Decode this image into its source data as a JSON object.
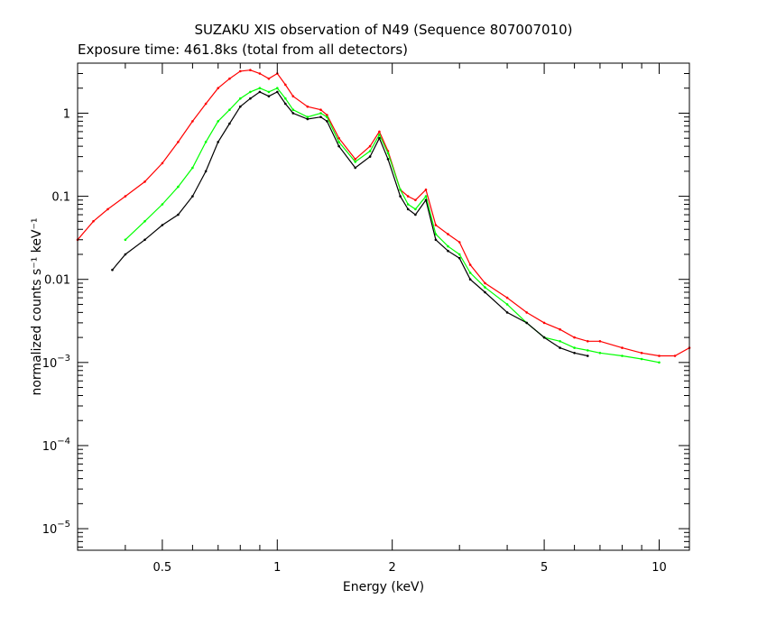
{
  "chart_data": {
    "type": "line",
    "title": "SUZAKU XIS observation of N49 (Sequence 807007010)",
    "subtitle": "Exposure time: 461.8ks (total from all detectors)",
    "xlabel": "Energy (keV)",
    "ylabel": "normalized counts s⁻¹ keV⁻¹",
    "x_scale": "log",
    "y_scale": "log",
    "xlim": [
      0.3,
      12
    ],
    "ylim": [
      5.5e-06,
      4
    ],
    "grid": false,
    "legend": "none",
    "x_ticks": [
      {
        "value": 0.5,
        "label": "0.5"
      },
      {
        "value": 1,
        "label": "1"
      },
      {
        "value": 2,
        "label": "2"
      },
      {
        "value": 5,
        "label": "5"
      },
      {
        "value": 10,
        "label": "10"
      }
    ],
    "y_ticks": [
      {
        "value": 1,
        "label": "1"
      },
      {
        "value": 0.1,
        "label": "0.1"
      },
      {
        "value": 0.01,
        "label": "0.01"
      },
      {
        "value": 0.001,
        "base": "10",
        "exp": "−3"
      },
      {
        "value": 0.0001,
        "base": "10",
        "exp": "−4"
      },
      {
        "value": 1e-05,
        "base": "10",
        "exp": "−5"
      }
    ],
    "series": [
      {
        "color": "#ff0000",
        "x": [
          0.3,
          0.33,
          0.36,
          0.4,
          0.45,
          0.5,
          0.55,
          0.6,
          0.65,
          0.7,
          0.75,
          0.8,
          0.85,
          0.9,
          0.95,
          1.0,
          1.05,
          1.1,
          1.2,
          1.3,
          1.35,
          1.45,
          1.6,
          1.75,
          1.85,
          1.95,
          2.1,
          2.2,
          2.3,
          2.45,
          2.6,
          2.8,
          3.0,
          3.2,
          3.5,
          4.0,
          4.5,
          5.0,
          5.5,
          6.0,
          6.5,
          7.0,
          8.0,
          9.0,
          10.0,
          11.0,
          12.0
        ],
        "y": [
          0.03,
          0.05,
          0.07,
          0.1,
          0.15,
          0.25,
          0.45,
          0.8,
          1.3,
          2.0,
          2.6,
          3.2,
          3.3,
          3.0,
          2.6,
          3.0,
          2.2,
          1.6,
          1.2,
          1.1,
          0.95,
          0.5,
          0.28,
          0.4,
          0.6,
          0.35,
          0.12,
          0.1,
          0.09,
          0.12,
          0.045,
          0.035,
          0.028,
          0.015,
          0.009,
          0.006,
          0.004,
          0.003,
          0.0025,
          0.002,
          0.0018,
          0.0018,
          0.0015,
          0.0013,
          0.0012,
          0.0012,
          0.0015
        ]
      },
      {
        "color": "#00ff00",
        "x": [
          0.4,
          0.45,
          0.5,
          0.55,
          0.6,
          0.65,
          0.7,
          0.75,
          0.8,
          0.85,
          0.9,
          0.95,
          1.0,
          1.05,
          1.1,
          1.2,
          1.3,
          1.35,
          1.45,
          1.6,
          1.75,
          1.85,
          1.95,
          2.1,
          2.2,
          2.3,
          2.45,
          2.6,
          2.8,
          3.0,
          3.2,
          3.5,
          4.0,
          4.5,
          5.0,
          5.5,
          6.0,
          6.5,
          7.0,
          8.0,
          9.0,
          10.0
        ],
        "y": [
          0.03,
          0.05,
          0.08,
          0.13,
          0.22,
          0.45,
          0.8,
          1.1,
          1.5,
          1.8,
          2.0,
          1.8,
          2.0,
          1.5,
          1.1,
          0.9,
          1.0,
          0.9,
          0.45,
          0.26,
          0.35,
          0.55,
          0.33,
          0.12,
          0.08,
          0.07,
          0.1,
          0.035,
          0.025,
          0.02,
          0.012,
          0.008,
          0.005,
          0.003,
          0.002,
          0.0018,
          0.0015,
          0.0014,
          0.0013,
          0.0012,
          0.0011,
          0.001
        ]
      },
      {
        "color": "#000000",
        "x": [
          0.37,
          0.4,
          0.45,
          0.5,
          0.55,
          0.6,
          0.65,
          0.7,
          0.75,
          0.8,
          0.85,
          0.9,
          0.95,
          1.0,
          1.05,
          1.1,
          1.2,
          1.3,
          1.35,
          1.45,
          1.6,
          1.75,
          1.85,
          1.95,
          2.1,
          2.2,
          2.3,
          2.45,
          2.6,
          2.8,
          3.0,
          3.2,
          3.5,
          4.0,
          4.5,
          5.0,
          5.5,
          6.0,
          6.5
        ],
        "y": [
          0.013,
          0.02,
          0.03,
          0.045,
          0.06,
          0.1,
          0.2,
          0.45,
          0.75,
          1.2,
          1.5,
          1.8,
          1.6,
          1.8,
          1.3,
          1.0,
          0.85,
          0.9,
          0.8,
          0.4,
          0.22,
          0.3,
          0.5,
          0.28,
          0.1,
          0.07,
          0.06,
          0.09,
          0.03,
          0.022,
          0.018,
          0.01,
          0.007,
          0.004,
          0.003,
          0.002,
          0.0015,
          0.0013,
          0.0012
        ]
      }
    ]
  }
}
